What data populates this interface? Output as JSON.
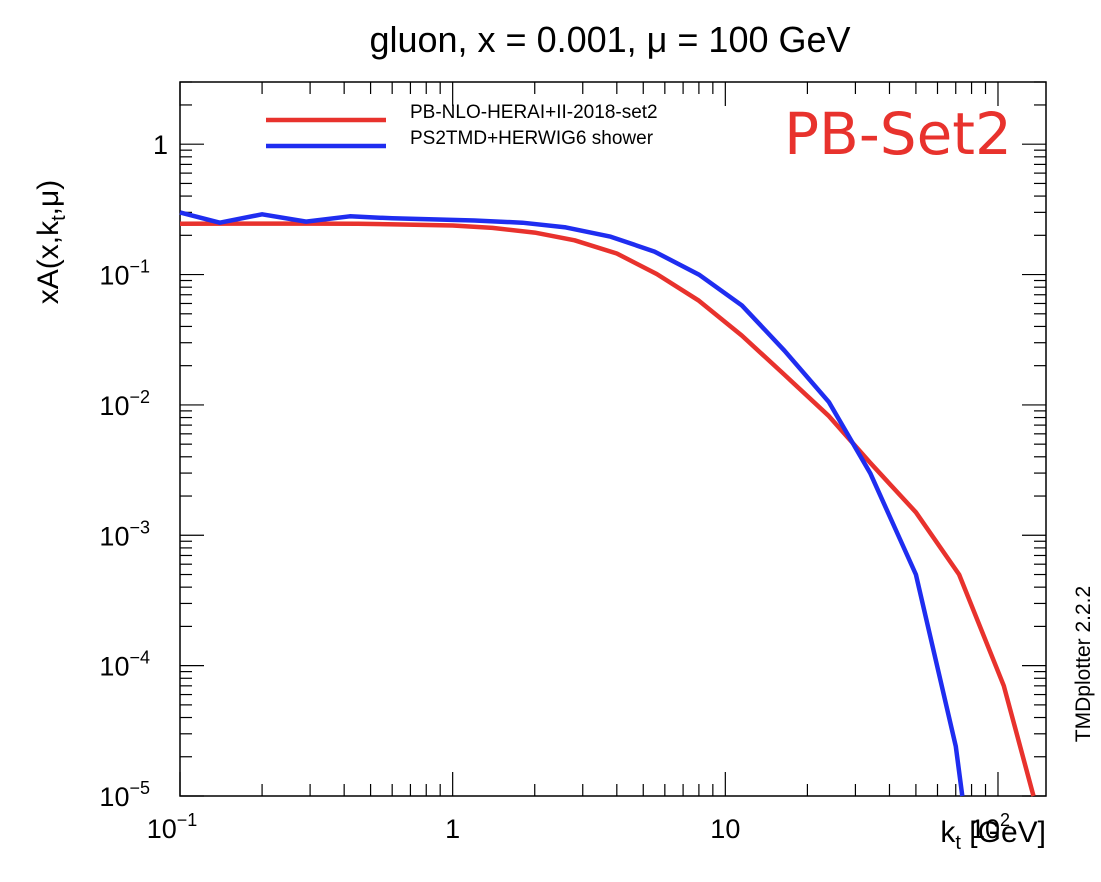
{
  "chart_data": {
    "type": "line",
    "title": "gluon, x = 0.001, μ = 100 GeV",
    "xlabel": {
      "main": "k",
      "sub": "t",
      "rest": " [GeV]"
    },
    "ylabel": {
      "pre": "xA(x,k",
      "sub": "t",
      "post": ",μ)"
    },
    "x_scale": "log",
    "y_scale": "log",
    "xlim": [
      0.1,
      150
    ],
    "ylim": [
      1e-05,
      3
    ],
    "x_ticks": [
      {
        "value": 0.1,
        "base": "10",
        "exp": "−1"
      },
      {
        "value": 1,
        "base": "1",
        "exp": ""
      },
      {
        "value": 10,
        "base": "10",
        "exp": ""
      },
      {
        "value": 100,
        "base": "10",
        "exp": "2"
      }
    ],
    "y_ticks": [
      {
        "value": 1,
        "base": "1",
        "exp": ""
      },
      {
        "value": 0.1,
        "base": "10",
        "exp": "−1"
      },
      {
        "value": 0.01,
        "base": "10",
        "exp": "−2"
      },
      {
        "value": 0.001,
        "base": "10",
        "exp": "−3"
      },
      {
        "value": 0.0001,
        "base": "10",
        "exp": "−4"
      },
      {
        "value": 1e-05,
        "base": "10",
        "exp": "−5"
      }
    ],
    "grid": false,
    "legend_position": "top",
    "series": [
      {
        "name": "PB-NLO-HERAI+II-2018-set2",
        "color": "#e8322d",
        "x": [
          0.1,
          0.15,
          0.2,
          0.3,
          0.45,
          0.65,
          1.0,
          1.4,
          2.0,
          2.8,
          4.0,
          5.6,
          8.0,
          11.5,
          16.5,
          24,
          34,
          50,
          72,
          105,
          135
        ],
        "y": [
          0.245,
          0.246,
          0.246,
          0.246,
          0.245,
          0.242,
          0.238,
          0.228,
          0.21,
          0.183,
          0.145,
          0.101,
          0.063,
          0.034,
          0.017,
          0.0082,
          0.0036,
          0.0015,
          0.0005,
          7e-05,
          1e-05
        ]
      },
      {
        "name": "PS2TMD+HERWIG6 shower",
        "color": "#1f2df0",
        "x": [
          0.1,
          0.14,
          0.2,
          0.29,
          0.42,
          0.6,
          0.85,
          1.2,
          1.8,
          2.6,
          3.8,
          5.5,
          8.0,
          11.5,
          16.5,
          24,
          34,
          50,
          70,
          74
        ],
        "y": [
          0.3,
          0.25,
          0.29,
          0.255,
          0.28,
          0.27,
          0.265,
          0.26,
          0.25,
          0.23,
          0.195,
          0.15,
          0.1,
          0.058,
          0.026,
          0.0105,
          0.003,
          0.0005,
          2.4e-05,
          1e-05
        ]
      }
    ],
    "annotation": {
      "text": "PB-Set2",
      "color": "#e8322d"
    }
  },
  "watermark": "TMDplotter 2.2.2"
}
